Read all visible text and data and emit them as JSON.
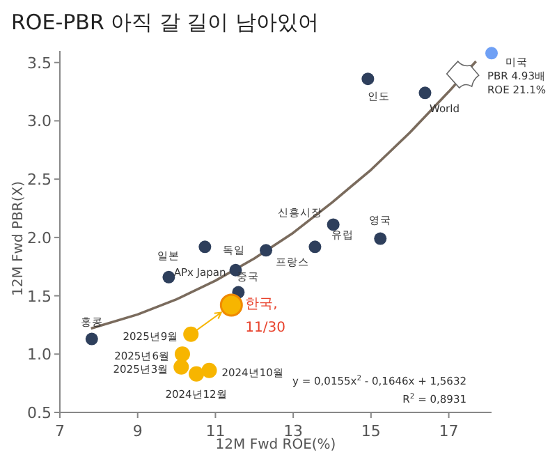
{
  "chart_data": {
    "type": "scatter",
    "title": "ROE-PBR 아직 갈 길이 남아있어",
    "xlabel": "12M Fwd ROE(%)",
    "ylabel": "12M Fwd PBR(X)",
    "xlim": [
      7,
      18.1
    ],
    "ylim": [
      0.5,
      3.6
    ],
    "xticks": [
      7,
      9,
      11,
      13,
      15,
      17
    ],
    "yticks": [
      {
        "value": 0.5,
        "label": "0.5"
      },
      {
        "value": 1,
        "label": "1.0"
      },
      {
        "value": 1.5,
        "label": "1.5"
      },
      {
        "value": 2,
        "label": "2.0"
      },
      {
        "value": 2.5,
        "label": "2.5"
      },
      {
        "value": 3,
        "label": "3.0"
      },
      {
        "value": 3.5,
        "label": "3.5"
      }
    ],
    "grid": false,
    "marker": "circle",
    "series": [
      {
        "type": "scatter",
        "color": "#2e3f5c",
        "x": [
          7.82,
          9.8,
          10.73,
          11.52,
          11.59,
          12.3,
          14.03,
          13.56,
          15.24,
          14.92,
          16.39
        ],
        "values": [
          1.13,
          1.66,
          1.92,
          1.72,
          1.53,
          1.89,
          2.11,
          1.92,
          1.99,
          3.36,
          3.24
        ]
      },
      {
        "type": "scatter",
        "color": "#6fa0f5",
        "x": [
          18.1
        ],
        "values": [
          3.58
        ]
      },
      {
        "type": "scatter",
        "color": "#f7b500",
        "x": [
          10.84,
          10.51,
          10.12,
          10.15,
          10.37,
          11.41
        ],
        "values": [
          0.86,
          0.83,
          0.89,
          1.0,
          1.17,
          1.42
        ],
        "sizes": [
          0.54,
          0.54,
          0.54,
          0.54,
          0.54,
          1
        ]
      },
      {
        "type": "line",
        "color": "#7a6b5d",
        "line_style": "solid",
        "marker": "none",
        "x": [
          7.8,
          9,
          10,
          11,
          12,
          13,
          14,
          15,
          16,
          17,
          17.7
        ],
        "values": [
          1.22,
          1.34,
          1.47,
          1.63,
          1.82,
          2.04,
          2.3,
          2.58,
          2.9,
          3.25,
          3.51
        ]
      }
    ],
    "annotations": [
      {
        "text": "홍콩",
        "x": 7.82,
        "y": 1.13
      },
      {
        "text": "일본",
        "x": 9.8,
        "y": 1.66
      },
      {
        "text": "독일",
        "x": 10.73,
        "y": 1.92
      },
      {
        "text": "APx Japan",
        "x": 11.52,
        "y": 1.72
      },
      {
        "text": "중국",
        "x": 11.59,
        "y": 1.53
      },
      {
        "text": "프랑스",
        "x": 12.3,
        "y": 1.89
      },
      {
        "text": "신흥시장",
        "x": 14.03,
        "y": 2.11
      },
      {
        "text": "유럽",
        "x": 13.56,
        "y": 1.92
      },
      {
        "text": "영국",
        "x": 15.24,
        "y": 1.99
      },
      {
        "text": "인도",
        "x": 14.92,
        "y": 3.36
      },
      {
        "text": "World",
        "x": 16.39,
        "y": 3.24
      },
      {
        "text": "미국\nPBR 4.93배\nROE 21.1%",
        "x": 18.1,
        "y": 3.58
      },
      {
        "text": "한국,\n11/30",
        "x": 11.41,
        "y": 1.42
      },
      {
        "text": "2025년9월",
        "x": 10.37,
        "y": 1.17
      },
      {
        "text": "2025년6월",
        "x": 10.15,
        "y": 1.0
      },
      {
        "text": "2025년3월",
        "x": 10.12,
        "y": 0.89
      },
      {
        "text": "2024년12월",
        "x": 10.51,
        "y": 0.83
      },
      {
        "text": "2024년10월",
        "x": 10.84,
        "y": 0.86
      },
      "y = 0,0155x$^{2}$ - 0,1646x + 1,5632",
      "R$^{2}$ = 0,8931"
    ]
  }
}
